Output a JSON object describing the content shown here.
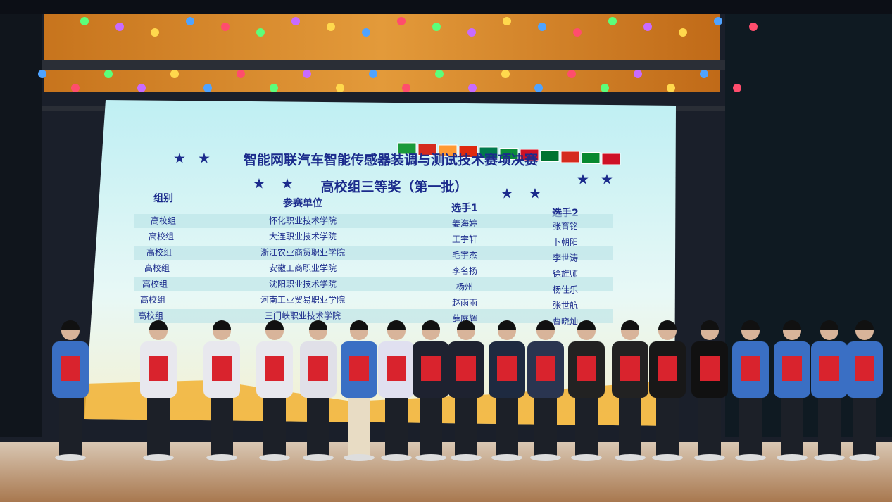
{
  "screen": {
    "title_line1": "智能网联汽车智能传感器装调与测试技术赛项决赛",
    "title_line2": "高校组三等奖（第一批）",
    "table": {
      "headers": [
        "组别",
        "参赛单位",
        "选手1",
        "选手2"
      ],
      "rows": [
        [
          "高校组",
          "怀化职业技术学院",
          "姜海婷",
          "张育铭"
        ],
        [
          "高校组",
          "大连职业技术学院",
          "王宇轩",
          "卜朝阳"
        ],
        [
          "高校组",
          "浙江农业商贸职业学院",
          "毛宇杰",
          "李世涛"
        ],
        [
          "高校组",
          "安徽工商职业学院",
          "李名扬",
          "徐旌师"
        ],
        [
          "高校组",
          "沈阳职业技术学院",
          "杨州",
          "杨佳乐"
        ],
        [
          "高校组",
          "河南工业贸易职业学院",
          "赵雨雨",
          "张世航"
        ],
        [
          "高校组",
          "三门峡职业技术学院",
          "薛庭辉",
          "曹晓灿"
        ]
      ]
    }
  }
}
